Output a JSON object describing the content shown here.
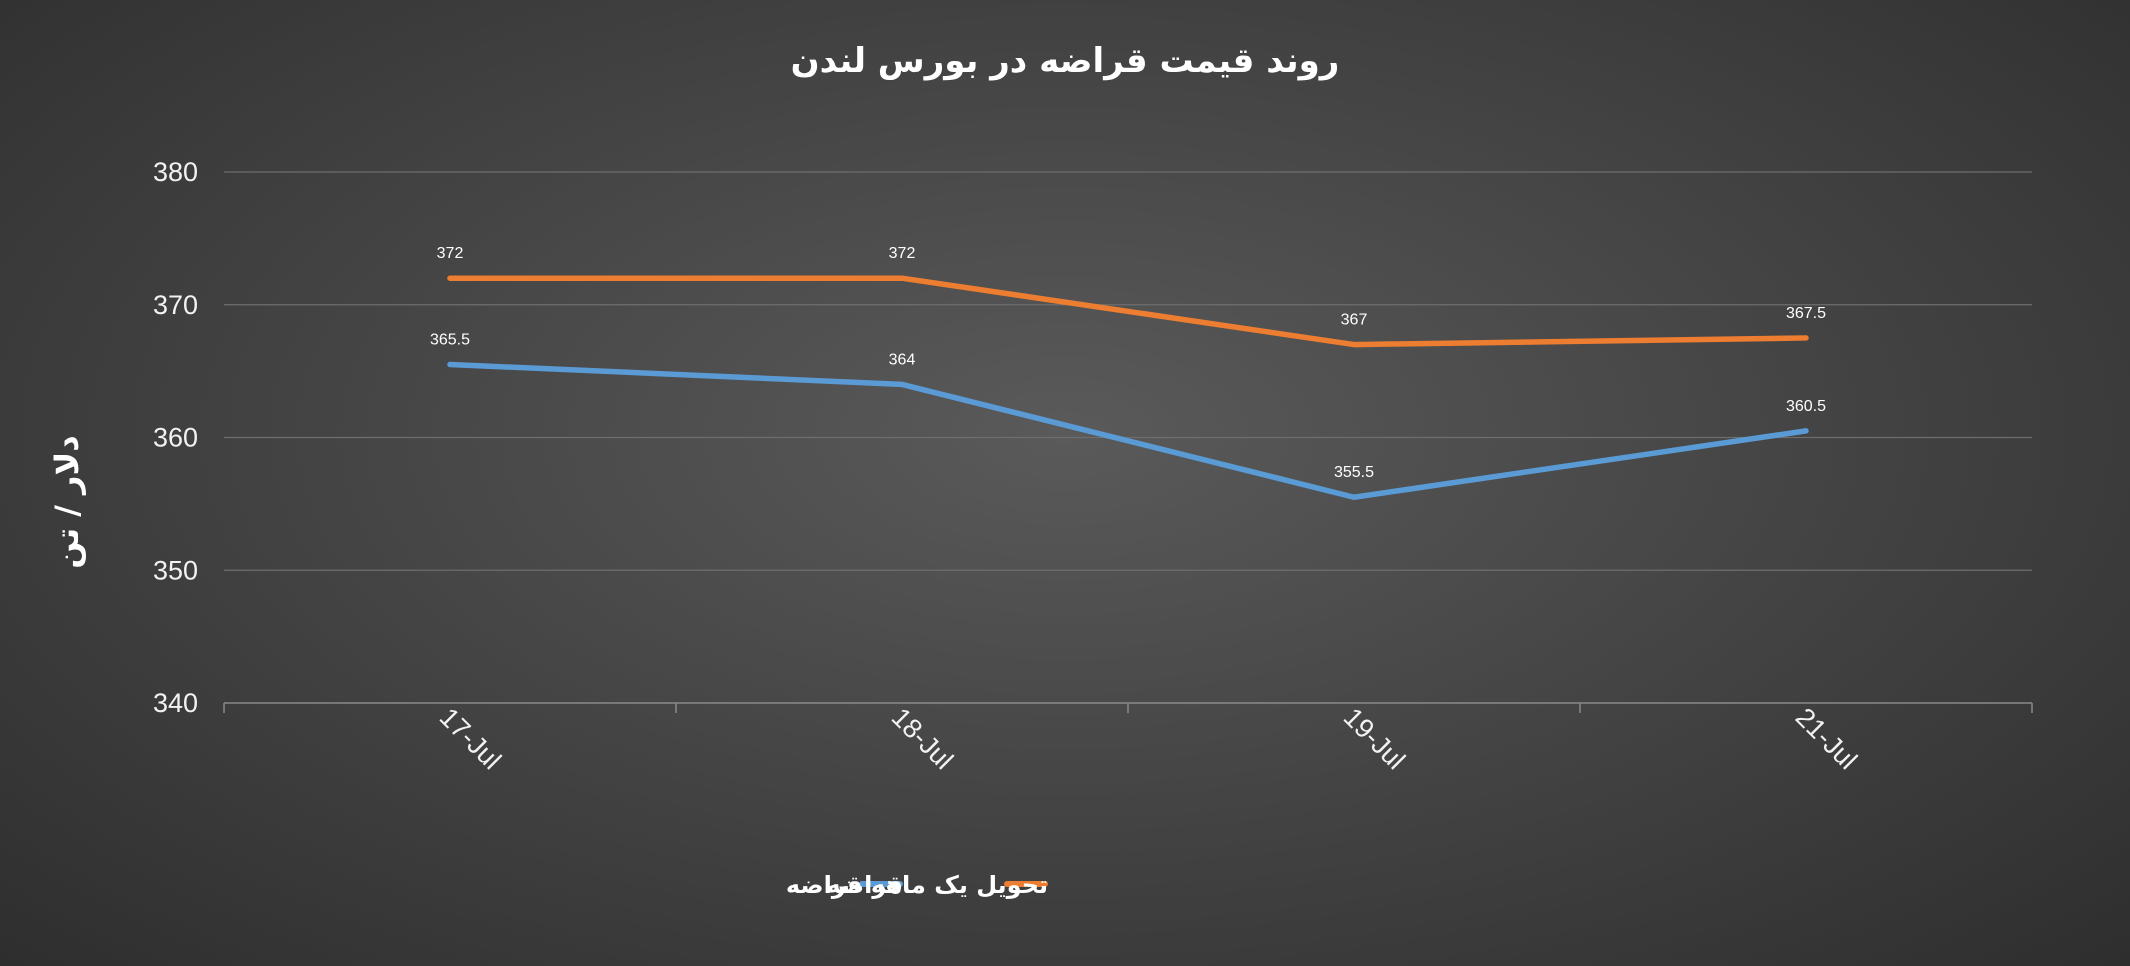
{
  "chart_data": {
    "type": "line",
    "title": "روند قیمت قراضه در بورس لندن",
    "xlabel": "",
    "ylabel": "دلار / تن",
    "categories": [
      "17-Jul",
      "18-Jul",
      "19-Jul",
      "21-Jul"
    ],
    "ylim": [
      340,
      380
    ],
    "yticks": [
      340,
      350,
      360,
      370,
      380
    ],
    "grid": true,
    "legend_position": "bottom",
    "series": [
      {
        "name": "قراضه",
        "color": "#5b9bd5",
        "values": [
          365.5,
          364,
          355.5,
          360.5
        ],
        "labels": [
          "365.5",
          "364",
          "355.5",
          "360.5"
        ]
      },
      {
        "name": "تحویل یک ماهه قراضه",
        "color": "#ed7d31",
        "values": [
          372,
          372,
          367,
          367.5
        ],
        "labels": [
          "372",
          "372",
          "367",
          "367.5"
        ]
      }
    ]
  }
}
